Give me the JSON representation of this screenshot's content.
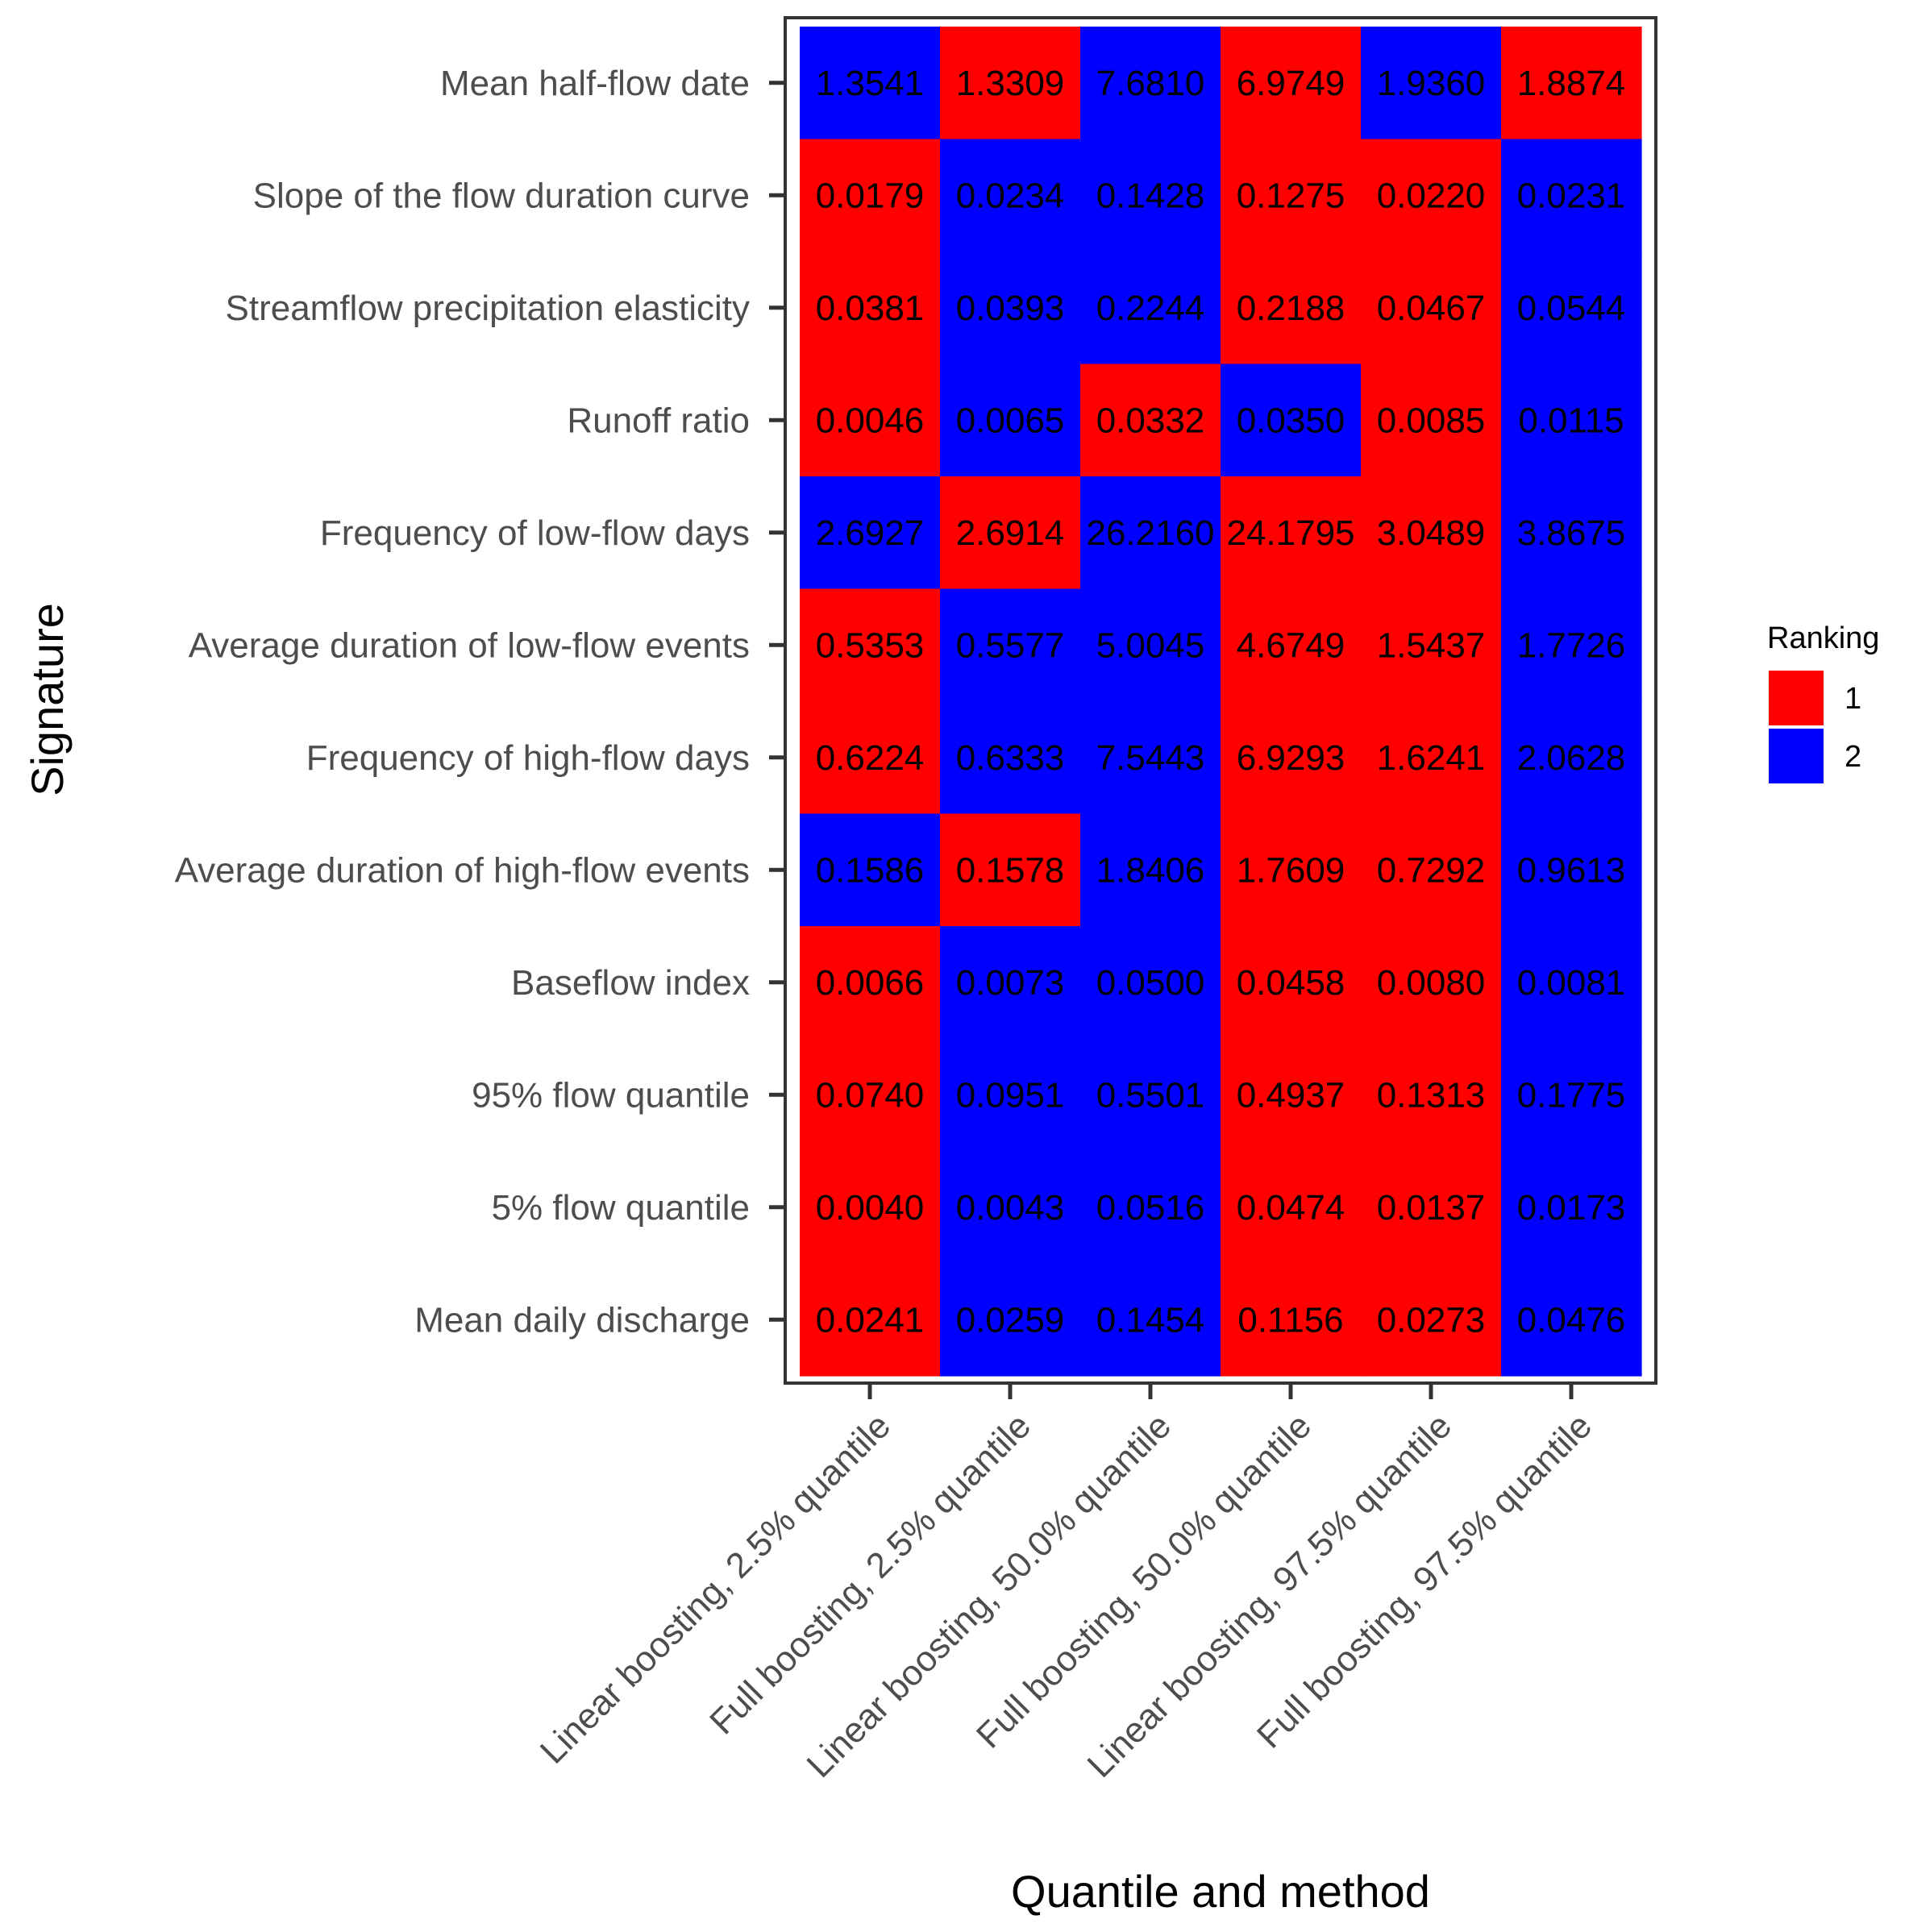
{
  "chart_data": {
    "type": "heatmap",
    "title": "",
    "xlabel": "Quantile and method",
    "ylabel": "Signature",
    "x_categories": [
      "Linear boosting, 2.5% quantile",
      "Full boosting, 2.5% quantile",
      "Linear boosting, 50.0% quantile",
      "Full boosting, 50.0% quantile",
      "Linear boosting, 97.5% quantile",
      "Full boosting, 97.5% quantile"
    ],
    "y_categories": [
      "Mean half-flow date",
      "Slope of the flow duration curve",
      "Streamflow precipitation elasticity",
      "Runoff ratio",
      "Frequency of low-flow days",
      "Average duration of low-flow events",
      "Frequency of high-flow days",
      "Average duration of high-flow events",
      "Baseflow index",
      "95% flow quantile",
      "5% flow quantile",
      "Mean daily discharge"
    ],
    "values": [
      [
        "1.3541",
        "1.3309",
        "7.6810",
        "6.9749",
        "1.9360",
        "1.8874"
      ],
      [
        "0.0179",
        "0.0234",
        "0.1428",
        "0.1275",
        "0.0220",
        "0.0231"
      ],
      [
        "0.0381",
        "0.0393",
        "0.2244",
        "0.2188",
        "0.0467",
        "0.0544"
      ],
      [
        "0.0046",
        "0.0065",
        "0.0332",
        "0.0350",
        "0.0085",
        "0.0115"
      ],
      [
        "2.6927",
        "2.6914",
        "26.2160",
        "24.1795",
        "3.0489",
        "3.8675"
      ],
      [
        "0.5353",
        "0.5577",
        "5.0045",
        "4.6749",
        "1.5437",
        "1.7726"
      ],
      [
        "0.6224",
        "0.6333",
        "7.5443",
        "6.9293",
        "1.6241",
        "2.0628"
      ],
      [
        "0.1586",
        "0.1578",
        "1.8406",
        "1.7609",
        "0.7292",
        "0.9613"
      ],
      [
        "0.0066",
        "0.0073",
        "0.0500",
        "0.0458",
        "0.0080",
        "0.0081"
      ],
      [
        "0.0740",
        "0.0951",
        "0.5501",
        "0.4937",
        "0.1313",
        "0.1775"
      ],
      [
        "0.0040",
        "0.0043",
        "0.0516",
        "0.0474",
        "0.0137",
        "0.0173"
      ],
      [
        "0.0241",
        "0.0259",
        "0.1454",
        "0.1156",
        "0.0273",
        "0.0476"
      ]
    ],
    "ranking": [
      [
        2,
        1,
        2,
        1,
        2,
        1
      ],
      [
        1,
        2,
        2,
        1,
        1,
        2
      ],
      [
        1,
        2,
        2,
        1,
        1,
        2
      ],
      [
        1,
        2,
        1,
        2,
        1,
        2
      ],
      [
        2,
        1,
        2,
        1,
        1,
        2
      ],
      [
        1,
        2,
        2,
        1,
        1,
        2
      ],
      [
        1,
        2,
        2,
        1,
        1,
        2
      ],
      [
        2,
        1,
        2,
        1,
        1,
        2
      ],
      [
        1,
        2,
        2,
        1,
        1,
        2
      ],
      [
        1,
        2,
        2,
        1,
        1,
        2
      ],
      [
        1,
        2,
        2,
        1,
        1,
        2
      ],
      [
        1,
        2,
        2,
        1,
        1,
        2
      ]
    ],
    "legend": {
      "title": "Ranking",
      "position": "right",
      "entries": [
        {
          "label": "1",
          "color": "#ff0000"
        },
        {
          "label": "2",
          "color": "#0000ff"
        }
      ]
    },
    "grid": false
  }
}
